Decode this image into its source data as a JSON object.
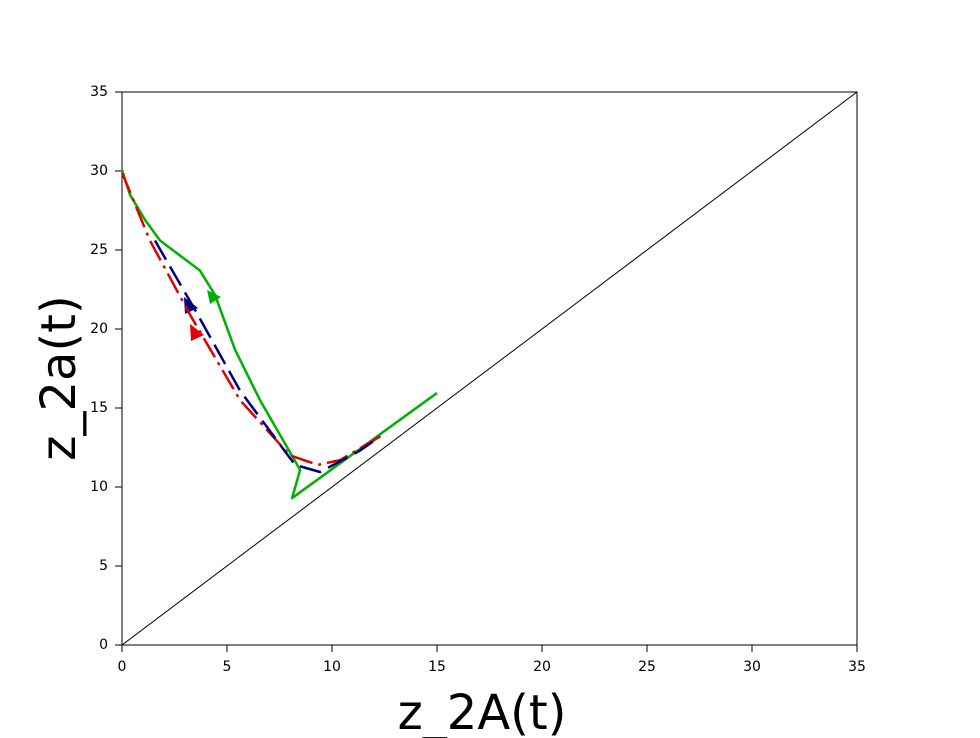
{
  "chart_data": {
    "type": "line",
    "xlabel": "z_2A(t)",
    "ylabel": "z_2a(t)",
    "xlim": [
      0,
      35
    ],
    "ylim": [
      0,
      35
    ],
    "xticks": [
      0,
      5,
      10,
      15,
      20,
      25,
      30,
      35
    ],
    "yticks": [
      0,
      5,
      10,
      15,
      20,
      25,
      30,
      35
    ],
    "series": [
      {
        "color": "#000000",
        "dash": "solid",
        "width": 1,
        "x": [
          0,
          35
        ],
        "values": [
          0,
          35
        ]
      },
      {
        "color": "#00b000",
        "dash": "solid",
        "width": 2.5,
        "x": [
          15,
          8.1,
          8.48,
          8.0,
          6.57,
          5.38,
          4.43,
          3.71,
          1.81,
          1.1,
          0.38,
          0
        ],
        "values": [
          15.95,
          9.3,
          11.08,
          12.2,
          15.5,
          18.7,
          22.15,
          23.7,
          25.6,
          26.9,
          28.5,
          30.06
        ]
      },
      {
        "color": "#e00000",
        "dash": "dashdot",
        "width": 2.5,
        "x": [
          0,
          1.33,
          3.24,
          5.62,
          8,
          9.33,
          10.38,
          12.29
        ],
        "values": [
          29.9,
          25.6,
          20.9,
          15.5,
          12.0,
          11.4,
          11.7,
          13.2
        ]
      },
      {
        "color": "#00007f",
        "dash": "dashed",
        "width": 2.5,
        "x": [
          1.57,
          3.48,
          5.62,
          8.24,
          9.43,
          11.33,
          12.3
        ],
        "values": [
          25.6,
          21.2,
          16.1,
          11.4,
          10.95,
          12.3,
          13.2
        ]
      }
    ]
  }
}
